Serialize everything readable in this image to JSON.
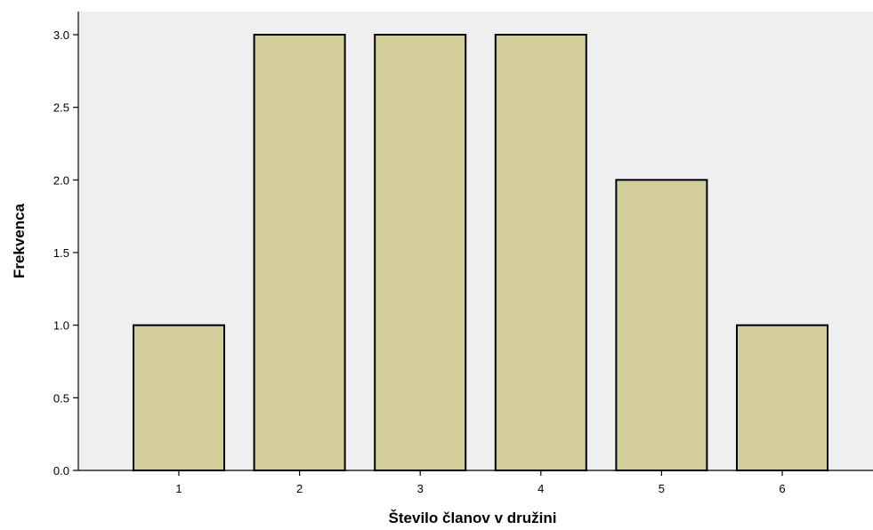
{
  "chart_data": {
    "type": "bar",
    "title": "",
    "xlabel": "Število članov v družini",
    "ylabel": "Frekvenca",
    "categories": [
      "1",
      "2",
      "3",
      "4",
      "5",
      "6"
    ],
    "values": [
      1,
      3,
      3,
      3,
      2,
      1
    ],
    "ylim": [
      0,
      3.2
    ],
    "yticks": [
      "0.0",
      "0.5",
      "1.0",
      "1.5",
      "2.0",
      "2.5",
      "3.0"
    ],
    "grid": false,
    "legend": "none",
    "colors": {
      "plot_background": "#efefef",
      "bar_fill": "#d3ce99",
      "bar_stroke": "#000000"
    }
  }
}
